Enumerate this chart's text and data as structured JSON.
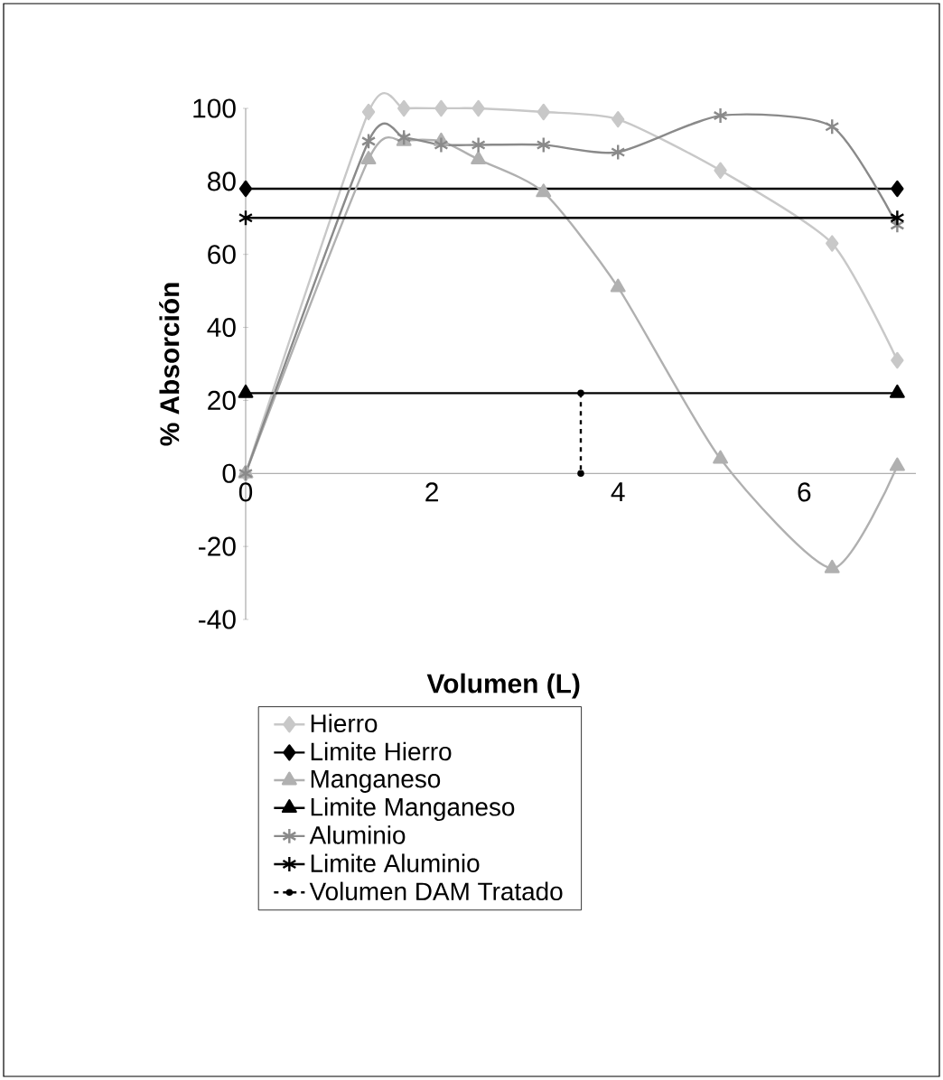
{
  "chart_data": {
    "type": "line",
    "xlabel": "Volumen (L)",
    "ylabel": "% Absorción",
    "xlim": [
      0,
      7.2
    ],
    "xticks": [
      0,
      2,
      4,
      6
    ],
    "ylim": [
      -40,
      100
    ],
    "yticks": [
      -40,
      -20,
      0,
      20,
      40,
      60,
      80,
      100
    ],
    "legend": "bottom",
    "grid": false,
    "series": [
      {
        "name": "Hierro",
        "color": "#c8c8c8",
        "marker": "diamond",
        "line_style": "solid",
        "x": [
          0,
          1.32,
          1.7,
          2.1,
          2.5,
          3.2,
          4,
          5.1,
          6.3,
          7
        ],
        "values": [
          0,
          99,
          100,
          100,
          100,
          99,
          97,
          83,
          63,
          31
        ]
      },
      {
        "name": "Limite Hierro",
        "color": "#000000",
        "marker": "diamond",
        "line_style": "solid",
        "x": [
          0,
          7
        ],
        "values": [
          78,
          78
        ]
      },
      {
        "name": "Manganeso",
        "color": "#b0b0b0",
        "marker": "triangle",
        "line_style": "solid",
        "x": [
          0,
          1.32,
          1.7,
          2.1,
          2.5,
          3.2,
          4,
          5.1,
          6.3,
          7
        ],
        "values": [
          0,
          86,
          91,
          91,
          86,
          77,
          51,
          4,
          -26,
          2
        ]
      },
      {
        "name": "Limite Manganeso",
        "color": "#000000",
        "marker": "triangle",
        "line_style": "solid",
        "x": [
          0,
          7
        ],
        "values": [
          22,
          22
        ]
      },
      {
        "name": "Aluminio",
        "color": "#8a8a8a",
        "marker": "cross",
        "line_style": "solid",
        "x": [
          0,
          1.32,
          1.7,
          2.1,
          2.5,
          3.2,
          4,
          5.1,
          6.3,
          7
        ],
        "values": [
          0,
          91,
          92,
          90,
          90,
          90,
          88,
          98,
          95,
          68
        ]
      },
      {
        "name": "Limite Aluminio",
        "color": "#000000",
        "marker": "cross",
        "line_style": "solid",
        "x": [
          0,
          7
        ],
        "values": [
          70,
          70
        ]
      },
      {
        "name": "Volumen DAM Tratado",
        "color": "#000000",
        "marker": "circle",
        "line_style": "dotted",
        "x": [
          3.6,
          3.6
        ],
        "values": [
          22,
          0
        ]
      }
    ]
  }
}
